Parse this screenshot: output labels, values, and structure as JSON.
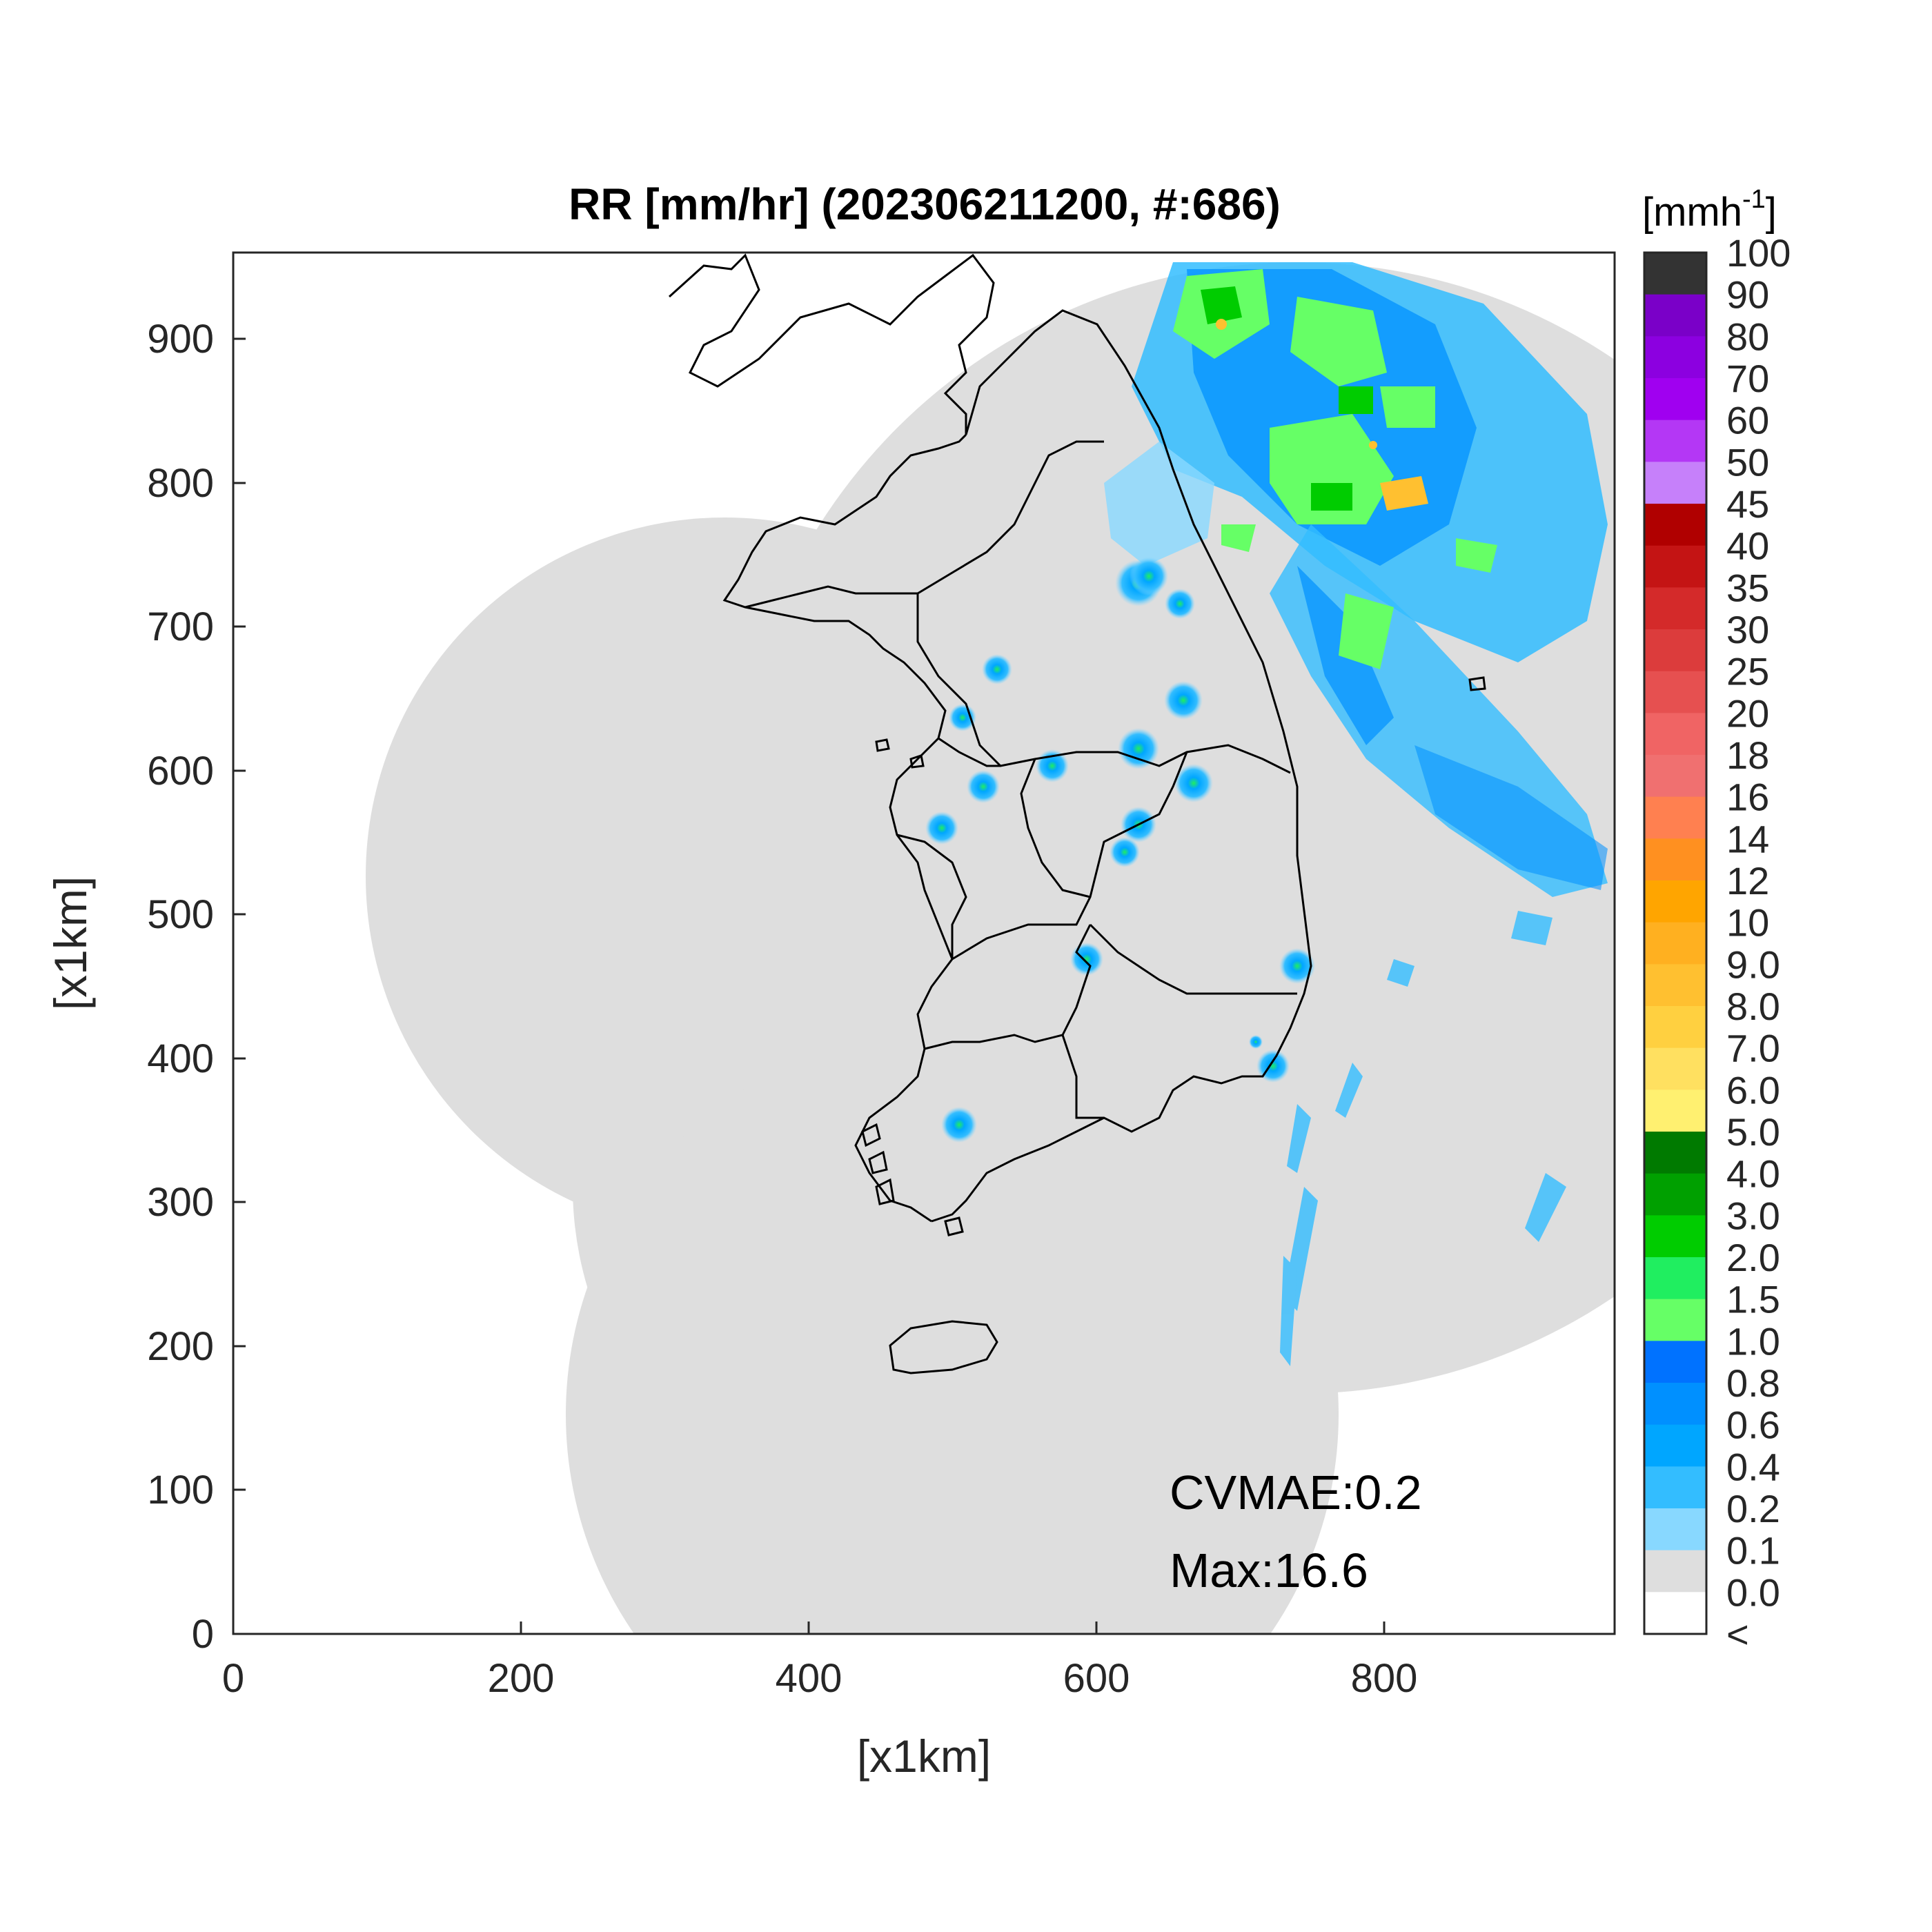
{
  "title": "RR [mm/hr] (202306211200, #:686)",
  "xlabel": "[x1km]",
  "ylabel": "[x1km]",
  "x_ticks": [
    "0",
    "200",
    "400",
    "600",
    "800"
  ],
  "y_ticks": [
    "0",
    "100",
    "200",
    "300",
    "400",
    "500",
    "600",
    "700",
    "800",
    "900"
  ],
  "annotations": {
    "cvmae": "CVMAE:0.2",
    "max": "Max:16.6"
  },
  "colorbar": {
    "unit_base": "[mmh",
    "unit_exp": "-1",
    "unit_close": "]",
    "labels": [
      "100",
      "90",
      "80",
      "70",
      "60",
      "50",
      "45",
      "40",
      "35",
      "30",
      "25",
      "20",
      "18",
      "16",
      "14",
      "12",
      "10",
      "9.0",
      "8.0",
      "7.0",
      "6.0",
      "5.0",
      "4.0",
      "3.0",
      "2.0",
      "1.5",
      "1.0",
      "0.8",
      "0.6",
      "0.4",
      "0.2",
      "0.1",
      "0.0",
      "<"
    ],
    "colors": [
      "#333333",
      "#7a00c8",
      "#8c00e0",
      "#a000f0",
      "#b437f5",
      "#c680fa",
      "#b00000",
      "#c41414",
      "#d42a2a",
      "#dc3c3c",
      "#e65050",
      "#f06464",
      "#f07070",
      "#ff8050",
      "#ff9020",
      "#ffa500",
      "#ffb020",
      "#ffc030",
      "#ffd040",
      "#ffe060",
      "#fff070",
      "#007a00",
      "#00a000",
      "#00cc00",
      "#20ee60",
      "#66ff66",
      "#0072ff",
      "#0090ff",
      "#00a6ff",
      "#33bdff",
      "#88d8ff",
      "#dedede",
      "#ffffff"
    ]
  },
  "chart_data": {
    "type": "heatmap",
    "title": "RR [mm/hr] (202306211200, #:686)",
    "xlabel": "[x1km]",
    "ylabel": "[x1km]",
    "xlim": [
      0,
      960
    ],
    "ylim": [
      0,
      960
    ],
    "colorbar_levels": [
      0.0,
      0.1,
      0.2,
      0.4,
      0.6,
      0.8,
      1.0,
      1.5,
      2.0,
      3.0,
      4.0,
      5.0,
      6.0,
      7.0,
      8.0,
      9.0,
      10,
      12,
      14,
      16,
      18,
      20,
      25,
      30,
      35,
      40,
      45,
      50,
      60,
      70,
      80,
      90,
      100
    ],
    "max": 16.6,
    "cvmae": 0.2
  }
}
